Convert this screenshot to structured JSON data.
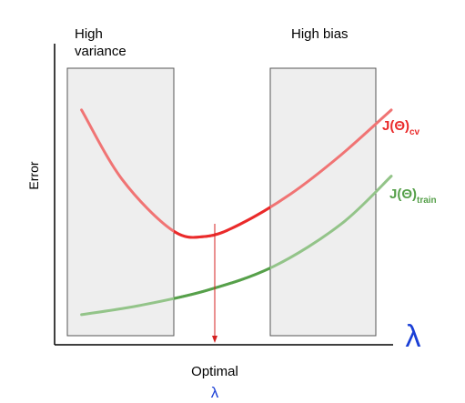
{
  "chart_data": {
    "type": "line",
    "title": "",
    "xlabel": "λ",
    "ylabel": "Error",
    "axis_color": "#000000",
    "x_axis_label_color": "#1a3fd6",
    "regions": [
      {
        "label_lines": [
          "High",
          "variance"
        ],
        "fill": "#eeeeee",
        "stroke": "#555555"
      },
      {
        "label_lines": [
          "High bias"
        ],
        "fill": "#eeeeee",
        "stroke": "#555555"
      }
    ],
    "series": [
      {
        "label_main": "J(Θ)",
        "label_sub": "cv",
        "color": "#ea2a2a",
        "faded_color": "#f07474",
        "x": [
          0.08,
          0.2,
          0.35,
          0.45,
          0.55,
          0.7,
          0.85,
          1.0
        ],
        "y": [
          0.78,
          0.55,
          0.38,
          0.36,
          0.4,
          0.5,
          0.63,
          0.78
        ]
      },
      {
        "label_main": "J(Θ)",
        "label_sub": "train",
        "color": "#56a04a",
        "faded_color": "#93c489",
        "x": [
          0.08,
          0.25,
          0.45,
          0.65,
          0.85,
          1.0
        ],
        "y": [
          0.1,
          0.13,
          0.18,
          0.26,
          0.4,
          0.56
        ]
      }
    ],
    "optimal": {
      "label": "Optimal",
      "symbol": "λ",
      "line_color": "#d42020",
      "symbol_color": "#1a3fd6"
    }
  }
}
